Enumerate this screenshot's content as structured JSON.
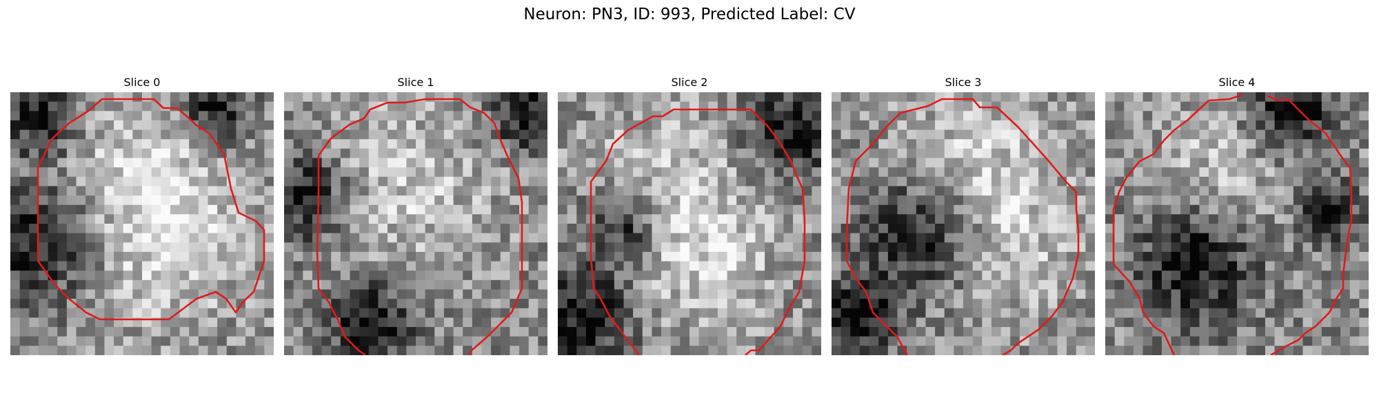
{
  "figure": {
    "title": "Neuron: PN3, ID: 993, Predicted Label: CV",
    "contour_color": "#e01a1a"
  },
  "panels": [
    {
      "title": "Slice 0",
      "dark_spots": [
        [
          0.1,
          0.57,
          0.16
        ],
        [
          0.12,
          0.1,
          0.1
        ],
        [
          0.78,
          0.05,
          0.1
        ]
      ],
      "bright_spots": [
        [
          0.5,
          0.3,
          0.25
        ],
        [
          0.6,
          0.6,
          0.22
        ]
      ]
    },
    {
      "title": "Slice 1",
      "dark_spots": [
        [
          0.08,
          0.4,
          0.12
        ],
        [
          0.33,
          0.88,
          0.12
        ],
        [
          0.92,
          0.08,
          0.1
        ]
      ],
      "bright_spots": [
        [
          0.45,
          0.35,
          0.25
        ]
      ]
    },
    {
      "title": "Slice 2",
      "dark_spots": [
        [
          0.1,
          0.85,
          0.14
        ],
        [
          0.88,
          0.15,
          0.12
        ],
        [
          0.25,
          0.5,
          0.1
        ]
      ],
      "bright_spots": [
        [
          0.4,
          0.35,
          0.22
        ],
        [
          0.55,
          0.65,
          0.2
        ]
      ]
    },
    {
      "title": "Slice 3",
      "dark_spots": [
        [
          0.35,
          0.55,
          0.16
        ],
        [
          0.1,
          0.85,
          0.1
        ]
      ],
      "bright_spots": [
        [
          0.55,
          0.25,
          0.22
        ],
        [
          0.65,
          0.6,
          0.2
        ]
      ]
    },
    {
      "title": "Slice 4",
      "dark_spots": [
        [
          0.35,
          0.65,
          0.16
        ],
        [
          0.7,
          0.08,
          0.12
        ],
        [
          0.85,
          0.45,
          0.08
        ]
      ],
      "bright_spots": [
        [
          0.45,
          0.3,
          0.2
        ]
      ]
    }
  ]
}
